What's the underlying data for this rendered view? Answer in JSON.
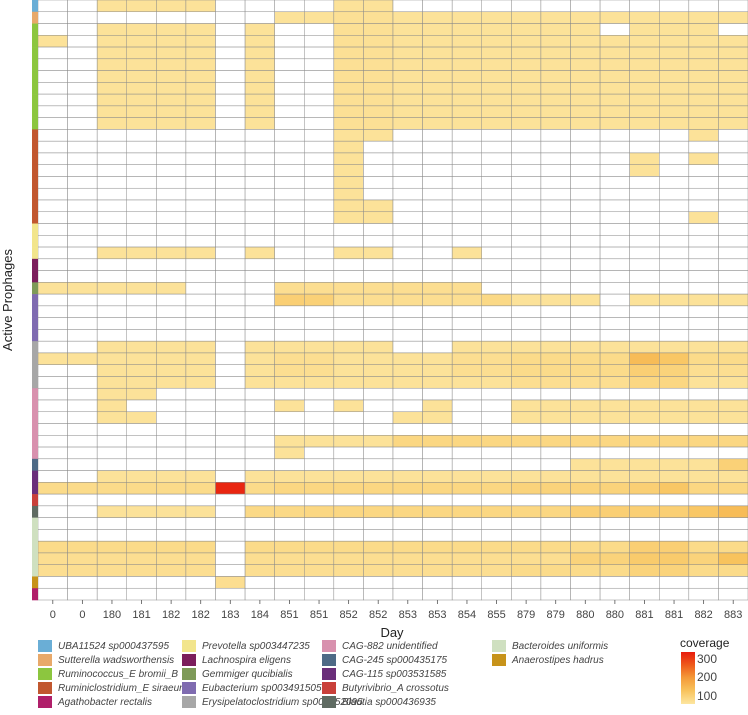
{
  "chart_data": {
    "type": "heatmap",
    "xlabel": "Day",
    "ylabel": "Active Prophages",
    "x_ticks": [
      "0",
      "0",
      "180",
      "181",
      "182",
      "182",
      "183",
      "184",
      "851",
      "851",
      "852",
      "852",
      "853",
      "853",
      "854",
      "855",
      "879",
      "879",
      "880",
      "880",
      "881",
      "881",
      "882",
      "883"
    ],
    "taxa": [
      {
        "name": "UBA11524 sp000437595",
        "color": "#6aaed6"
      },
      {
        "name": "Sutterella wadsworthensis",
        "color": "#e8a96a"
      },
      {
        "name": "Ruminococcus_E bromii_B",
        "color": "#8cc63f"
      },
      {
        "name": "Ruminiclostridium_E siraeum",
        "color": "#c1572f"
      },
      {
        "name": "Agathobacter rectalis",
        "color": "#b01f6a"
      },
      {
        "name": "Prevotella sp003447235",
        "color": "#f2e58c"
      },
      {
        "name": "Lachnospira eligens",
        "color": "#7b1e5c"
      },
      {
        "name": "Gemmiger qucibialis",
        "color": "#7e9a58"
      },
      {
        "name": "Eubacterium sp003491505",
        "color": "#7f6bb0"
      },
      {
        "name": "Erysipelatoclostridium sp000752095",
        "color": "#a7a7a7"
      },
      {
        "name": "CAG-882 unidentified",
        "color": "#d891ae"
      },
      {
        "name": "CAG-245 sp000435175",
        "color": "#4e6a86"
      },
      {
        "name": "CAG-115 sp003531585",
        "color": "#6a2e7a"
      },
      {
        "name": "Butyrivibrio_A crossotus",
        "color": "#c9403a"
      },
      {
        "name": "Blautia sp000436935",
        "color": "#5f6b62"
      },
      {
        "name": "Bacteroides uniformis",
        "color": "#cfe0c0"
      },
      {
        "name": "Anaerostipes hadrus",
        "color": "#c7931a"
      }
    ],
    "row_taxa": [
      0,
      1,
      2,
      2,
      2,
      2,
      2,
      2,
      2,
      2,
      2,
      3,
      3,
      3,
      3,
      3,
      3,
      3,
      3,
      5,
      5,
      5,
      6,
      6,
      7,
      8,
      8,
      8,
      8,
      9,
      9,
      9,
      9,
      10,
      10,
      10,
      10,
      10,
      10,
      11,
      12,
      12,
      13,
      14,
      15,
      15,
      15,
      15,
      15,
      16,
      4
    ],
    "values": [
      [
        0,
        0,
        70,
        70,
        70,
        70,
        0,
        0,
        0,
        0,
        70,
        70,
        0,
        0,
        0,
        0,
        0,
        0,
        0,
        0,
        0,
        0,
        0,
        0
      ],
      [
        0,
        0,
        0,
        0,
        0,
        0,
        0,
        0,
        70,
        70,
        75,
        75,
        70,
        70,
        70,
        70,
        70,
        70,
        70,
        70,
        70,
        70,
        70,
        70
      ],
      [
        0,
        0,
        70,
        70,
        70,
        70,
        0,
        70,
        0,
        0,
        75,
        75,
        70,
        70,
        70,
        70,
        70,
        70,
        70,
        0,
        70,
        70,
        70,
        0
      ],
      [
        70,
        0,
        70,
        70,
        70,
        70,
        0,
        70,
        0,
        0,
        75,
        75,
        70,
        70,
        70,
        70,
        70,
        70,
        70,
        70,
        70,
        70,
        70,
        70
      ],
      [
        0,
        0,
        70,
        70,
        70,
        70,
        0,
        70,
        0,
        0,
        75,
        75,
        70,
        70,
        70,
        70,
        70,
        70,
        70,
        70,
        70,
        70,
        70,
        70
      ],
      [
        0,
        0,
        70,
        70,
        70,
        70,
        0,
        70,
        0,
        0,
        75,
        75,
        70,
        70,
        70,
        70,
        70,
        70,
        70,
        70,
        70,
        70,
        70,
        70
      ],
      [
        0,
        0,
        70,
        70,
        70,
        70,
        0,
        70,
        0,
        0,
        75,
        75,
        70,
        70,
        70,
        70,
        70,
        70,
        70,
        70,
        70,
        70,
        70,
        70
      ],
      [
        0,
        0,
        70,
        70,
        70,
        70,
        0,
        70,
        0,
        0,
        75,
        75,
        70,
        70,
        70,
        70,
        70,
        70,
        70,
        70,
        70,
        70,
        70,
        70
      ],
      [
        0,
        0,
        70,
        70,
        70,
        70,
        0,
        70,
        0,
        0,
        75,
        75,
        70,
        70,
        70,
        70,
        70,
        70,
        70,
        70,
        70,
        70,
        70,
        70
      ],
      [
        0,
        0,
        70,
        70,
        70,
        70,
        0,
        70,
        0,
        0,
        75,
        75,
        70,
        70,
        70,
        70,
        70,
        70,
        70,
        70,
        70,
        70,
        70,
        70
      ],
      [
        0,
        0,
        70,
        70,
        70,
        70,
        0,
        70,
        0,
        0,
        75,
        75,
        70,
        70,
        70,
        70,
        70,
        70,
        70,
        70,
        70,
        70,
        70,
        70
      ],
      [
        0,
        0,
        0,
        0,
        0,
        0,
        0,
        0,
        0,
        0,
        70,
        70,
        0,
        0,
        0,
        0,
        0,
        0,
        0,
        0,
        0,
        0,
        70,
        0
      ],
      [
        0,
        0,
        0,
        0,
        0,
        0,
        0,
        0,
        0,
        0,
        70,
        0,
        0,
        0,
        0,
        0,
        0,
        0,
        0,
        0,
        0,
        0,
        0,
        0
      ],
      [
        0,
        0,
        0,
        0,
        0,
        0,
        0,
        0,
        0,
        0,
        70,
        0,
        0,
        0,
        0,
        0,
        0,
        0,
        0,
        0,
        70,
        0,
        70,
        0
      ],
      [
        0,
        0,
        0,
        0,
        0,
        0,
        0,
        0,
        0,
        0,
        70,
        0,
        0,
        0,
        0,
        0,
        0,
        0,
        0,
        0,
        70,
        0,
        0,
        0
      ],
      [
        0,
        0,
        0,
        0,
        0,
        0,
        0,
        0,
        0,
        0,
        70,
        0,
        0,
        0,
        0,
        0,
        0,
        0,
        0,
        0,
        0,
        0,
        0,
        0
      ],
      [
        0,
        0,
        0,
        0,
        0,
        0,
        0,
        0,
        0,
        0,
        70,
        0,
        0,
        0,
        0,
        0,
        0,
        0,
        0,
        0,
        0,
        0,
        0,
        0
      ],
      [
        0,
        0,
        0,
        0,
        0,
        0,
        0,
        0,
        0,
        0,
        70,
        70,
        0,
        0,
        0,
        0,
        0,
        0,
        0,
        0,
        0,
        0,
        0,
        0
      ],
      [
        0,
        0,
        0,
        0,
        0,
        0,
        0,
        0,
        0,
        0,
        70,
        70,
        0,
        0,
        0,
        0,
        0,
        0,
        0,
        0,
        0,
        0,
        70,
        0
      ],
      [
        0,
        0,
        0,
        0,
        0,
        0,
        0,
        0,
        0,
        0,
        0,
        0,
        0,
        0,
        0,
        0,
        0,
        0,
        0,
        0,
        0,
        0,
        0,
        0
      ],
      [
        0,
        0,
        0,
        0,
        0,
        0,
        0,
        0,
        0,
        0,
        0,
        0,
        0,
        0,
        0,
        0,
        0,
        0,
        0,
        0,
        0,
        0,
        0,
        0
      ],
      [
        0,
        0,
        70,
        70,
        70,
        70,
        0,
        70,
        0,
        0,
        70,
        70,
        0,
        0,
        70,
        0,
        0,
        0,
        0,
        0,
        0,
        0,
        0,
        0
      ],
      [
        0,
        0,
        0,
        0,
        0,
        0,
        0,
        0,
        0,
        0,
        0,
        0,
        0,
        0,
        0,
        0,
        0,
        0,
        0,
        0,
        0,
        0,
        0,
        0
      ],
      [
        0,
        0,
        0,
        0,
        0,
        0,
        0,
        0,
        0,
        0,
        0,
        0,
        0,
        0,
        0,
        0,
        0,
        0,
        0,
        0,
        0,
        0,
        0,
        0
      ],
      [
        70,
        70,
        70,
        70,
        70,
        0,
        0,
        0,
        80,
        80,
        80,
        80,
        80,
        80,
        80,
        0,
        0,
        0,
        0,
        0,
        0,
        0,
        0,
        0
      ],
      [
        0,
        0,
        0,
        0,
        0,
        0,
        0,
        0,
        120,
        115,
        80,
        80,
        80,
        80,
        80,
        95,
        70,
        70,
        70,
        0,
        70,
        70,
        70,
        70
      ],
      [
        0,
        0,
        0,
        0,
        0,
        0,
        0,
        0,
        0,
        0,
        0,
        0,
        0,
        0,
        0,
        0,
        0,
        0,
        0,
        0,
        0,
        0,
        0,
        0
      ],
      [
        0,
        0,
        0,
        0,
        0,
        0,
        0,
        0,
        0,
        0,
        0,
        0,
        0,
        0,
        0,
        0,
        0,
        0,
        0,
        0,
        0,
        0,
        0,
        0
      ],
      [
        0,
        0,
        0,
        0,
        0,
        0,
        0,
        0,
        0,
        0,
        0,
        0,
        0,
        0,
        0,
        0,
        0,
        0,
        0,
        0,
        0,
        0,
        0,
        0
      ],
      [
        0,
        0,
        70,
        70,
        70,
        70,
        0,
        70,
        70,
        70,
        70,
        70,
        0,
        0,
        70,
        70,
        70,
        70,
        70,
        70,
        70,
        70,
        70,
        70
      ],
      [
        70,
        70,
        70,
        70,
        70,
        70,
        0,
        70,
        80,
        80,
        70,
        70,
        70,
        70,
        80,
        80,
        90,
        90,
        90,
        90,
        160,
        140,
        90,
        90
      ],
      [
        0,
        0,
        70,
        70,
        70,
        70,
        0,
        70,
        80,
        80,
        70,
        70,
        70,
        70,
        80,
        80,
        90,
        90,
        90,
        90,
        120,
        110,
        80,
        80
      ],
      [
        0,
        0,
        70,
        70,
        70,
        70,
        0,
        70,
        70,
        70,
        70,
        70,
        70,
        70,
        70,
        70,
        80,
        80,
        80,
        80,
        100,
        100,
        70,
        70
      ],
      [
        0,
        0,
        70,
        70,
        0,
        0,
        0,
        0,
        0,
        0,
        0,
        0,
        0,
        0,
        0,
        0,
        0,
        0,
        0,
        0,
        0,
        0,
        0,
        0
      ],
      [
        0,
        0,
        70,
        0,
        0,
        0,
        0,
        0,
        70,
        0,
        70,
        0,
        0,
        70,
        0,
        0,
        70,
        70,
        70,
        70,
        70,
        70,
        70,
        70
      ],
      [
        0,
        0,
        70,
        70,
        0,
        0,
        0,
        0,
        0,
        0,
        0,
        0,
        70,
        70,
        0,
        0,
        70,
        70,
        70,
        70,
        70,
        70,
        70,
        70
      ],
      [
        0,
        0,
        0,
        0,
        0,
        0,
        0,
        0,
        0,
        0,
        0,
        0,
        0,
        0,
        0,
        0,
        0,
        0,
        0,
        0,
        0,
        0,
        0,
        0
      ],
      [
        0,
        0,
        0,
        0,
        0,
        0,
        0,
        0,
        70,
        70,
        70,
        70,
        100,
        100,
        100,
        100,
        100,
        100,
        100,
        100,
        100,
        100,
        100,
        100
      ],
      [
        0,
        0,
        0,
        0,
        0,
        0,
        0,
        0,
        70,
        0,
        0,
        0,
        0,
        0,
        0,
        0,
        0,
        0,
        0,
        0,
        0,
        0,
        0,
        0
      ],
      [
        0,
        0,
        0,
        0,
        0,
        0,
        0,
        0,
        0,
        0,
        0,
        0,
        0,
        0,
        0,
        0,
        0,
        0,
        70,
        70,
        70,
        70,
        70,
        115
      ],
      [
        0,
        0,
        70,
        70,
        70,
        70,
        0,
        70,
        70,
        70,
        70,
        70,
        70,
        70,
        70,
        70,
        70,
        70,
        70,
        70,
        70,
        70,
        70,
        70
      ],
      [
        90,
        90,
        90,
        90,
        90,
        90,
        320,
        90,
        100,
        100,
        100,
        100,
        100,
        100,
        100,
        100,
        110,
        110,
        110,
        110,
        120,
        140,
        100,
        100
      ],
      [
        0,
        0,
        0,
        0,
        0,
        0,
        0,
        0,
        0,
        0,
        0,
        0,
        0,
        0,
        0,
        0,
        0,
        0,
        0,
        0,
        0,
        0,
        0,
        0
      ],
      [
        0,
        0,
        70,
        70,
        70,
        70,
        0,
        95,
        95,
        100,
        100,
        100,
        100,
        100,
        100,
        100,
        100,
        100,
        120,
        120,
        120,
        120,
        140,
        160
      ],
      [
        0,
        0,
        0,
        0,
        0,
        0,
        0,
        0,
        0,
        0,
        0,
        0,
        0,
        0,
        0,
        0,
        0,
        0,
        0,
        0,
        0,
        0,
        0,
        0
      ],
      [
        0,
        0,
        0,
        0,
        0,
        0,
        0,
        0,
        0,
        0,
        0,
        0,
        0,
        0,
        0,
        0,
        0,
        0,
        0,
        0,
        0,
        0,
        0,
        0
      ],
      [
        90,
        90,
        90,
        90,
        90,
        90,
        0,
        90,
        90,
        90,
        90,
        90,
        90,
        90,
        90,
        90,
        90,
        90,
        90,
        90,
        120,
        120,
        90,
        90
      ],
      [
        80,
        80,
        80,
        80,
        80,
        80,
        0,
        80,
        80,
        80,
        80,
        80,
        80,
        80,
        80,
        80,
        80,
        80,
        110,
        110,
        130,
        130,
        110,
        150
      ],
      [
        80,
        80,
        80,
        80,
        80,
        80,
        0,
        80,
        80,
        80,
        80,
        80,
        80,
        80,
        80,
        80,
        90,
        90,
        90,
        90,
        110,
        110,
        90,
        90
      ],
      [
        0,
        0,
        0,
        0,
        0,
        0,
        80,
        0,
        0,
        0,
        0,
        0,
        0,
        0,
        0,
        0,
        0,
        0,
        0,
        0,
        0,
        0,
        0,
        0
      ],
      [
        0,
        0,
        0,
        0,
        0,
        0,
        0,
        0,
        0,
        0,
        0,
        0,
        0,
        0,
        0,
        0,
        0,
        0,
        0,
        0,
        0,
        0,
        0,
        0
      ]
    ],
    "colorbar": {
      "title": "coverage",
      "ticks": [
        "300",
        "200",
        "100"
      ],
      "min": 60,
      "max": 330
    }
  }
}
